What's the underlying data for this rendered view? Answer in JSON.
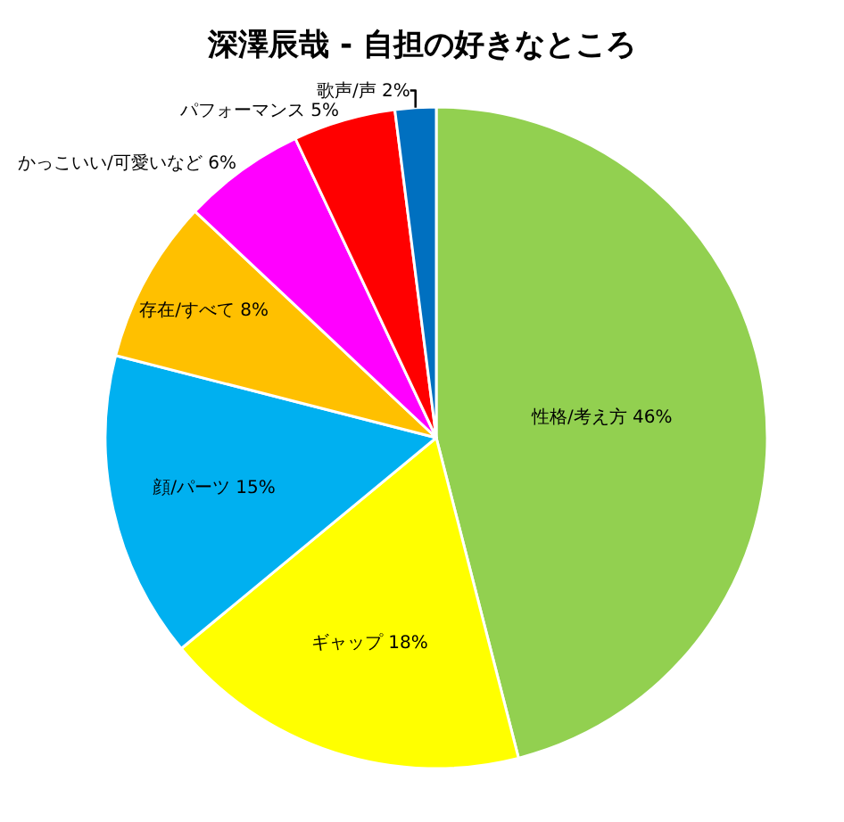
{
  "chart_data": {
    "type": "pie",
    "title": "深澤辰哉 - 自担の好きなところ",
    "categories": [
      "性格/考え方",
      "ギャップ",
      "顔/パーツ",
      "存在/すべて",
      "かっこいい/可愛いなど",
      "パフォーマンス",
      "歌声/声"
    ],
    "values": [
      46,
      18,
      15,
      8,
      6,
      5,
      2
    ],
    "value_labels": [
      "46%",
      "18%",
      "15%",
      "8%",
      "6%",
      "5%",
      "2%"
    ],
    "colors": [
      "#92d050",
      "#ffff00",
      "#00b0f0",
      "#ffc000",
      "#ff00ff",
      "#ff0000",
      "#0070c0"
    ],
    "legend": false
  }
}
